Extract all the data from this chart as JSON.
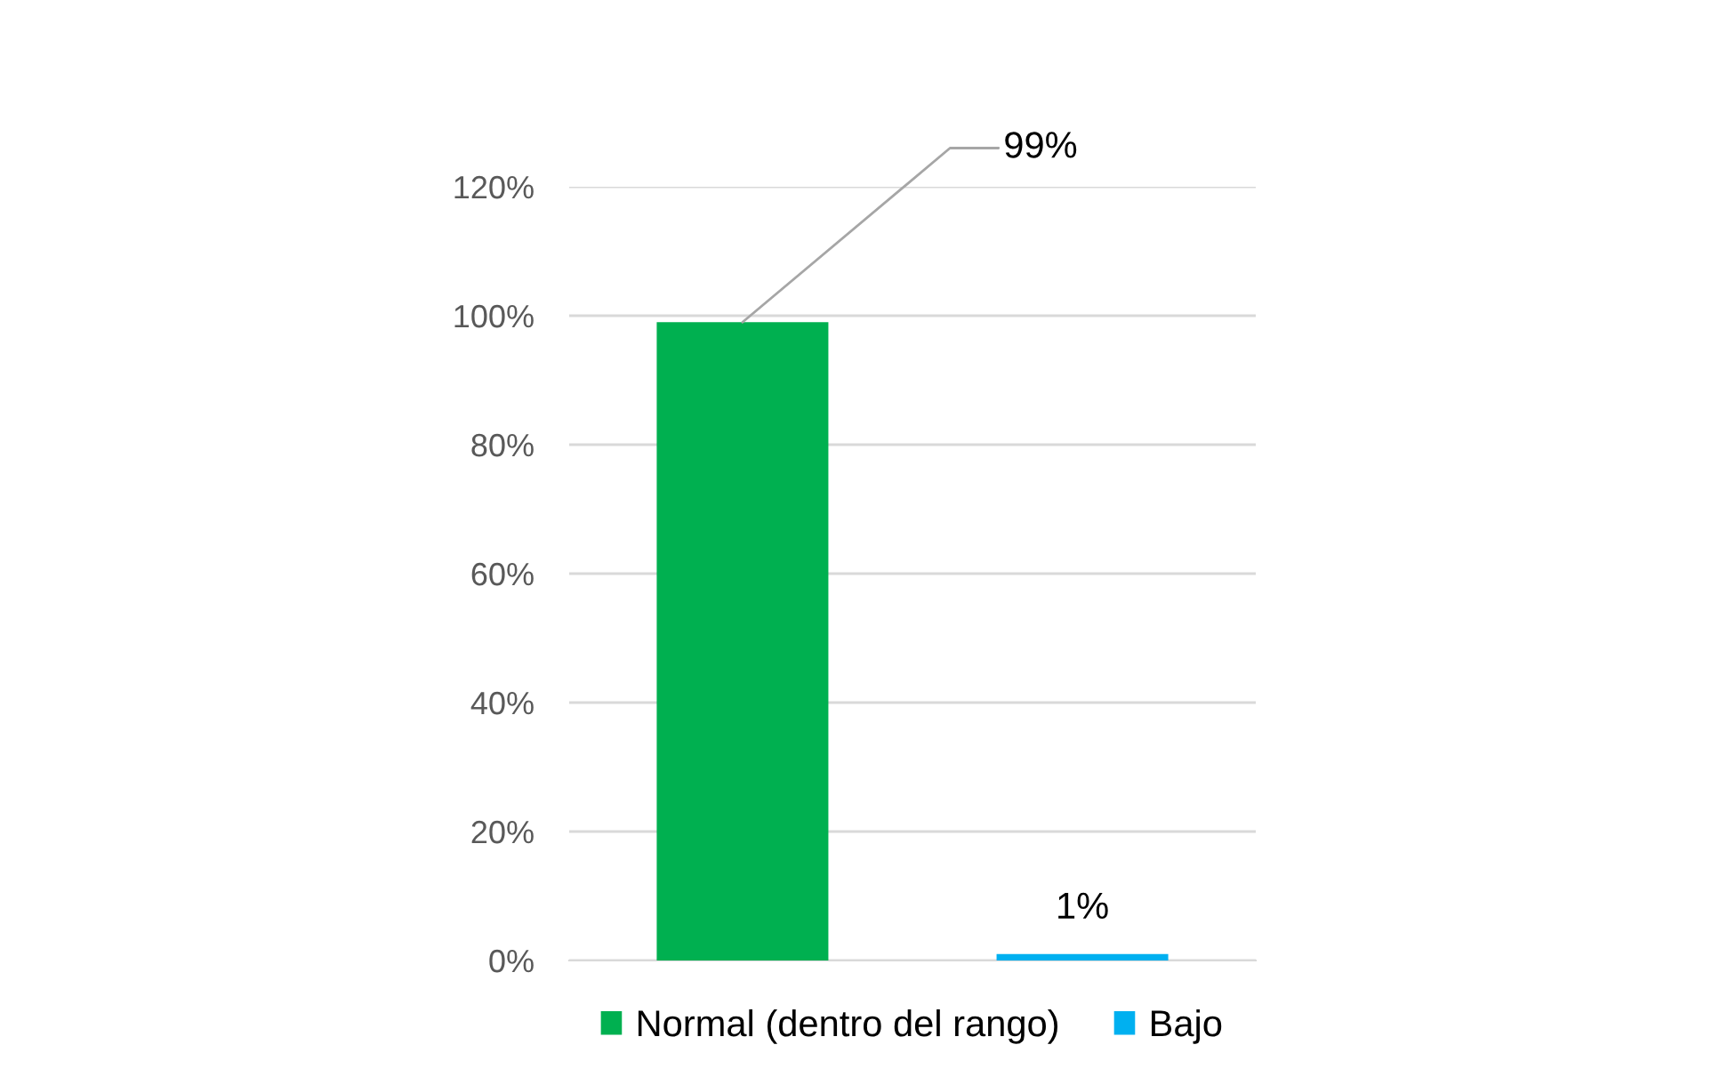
{
  "chart_data": {
    "type": "bar",
    "categories": [
      null
    ],
    "series": [
      {
        "name": "Normal (dentro del rango)",
        "color": "#00b050",
        "values": [
          99
        ],
        "value_labels": [
          "99%"
        ]
      },
      {
        "name": "Bajo",
        "color": "#00b0f0",
        "values": [
          1
        ],
        "value_labels": [
          "1%"
        ]
      }
    ],
    "ylim": [
      0,
      120
    ],
    "yticks": [
      {
        "value": 0,
        "label": "0%"
      },
      {
        "value": 20,
        "label": "20%"
      },
      {
        "value": 40,
        "label": "40%"
      },
      {
        "value": 60,
        "label": "60%"
      },
      {
        "value": 80,
        "label": "80%"
      },
      {
        "value": 100,
        "label": "100%"
      },
      {
        "value": 120,
        "label": "120%"
      }
    ],
    "grid": "y",
    "legend": "bottom"
  }
}
